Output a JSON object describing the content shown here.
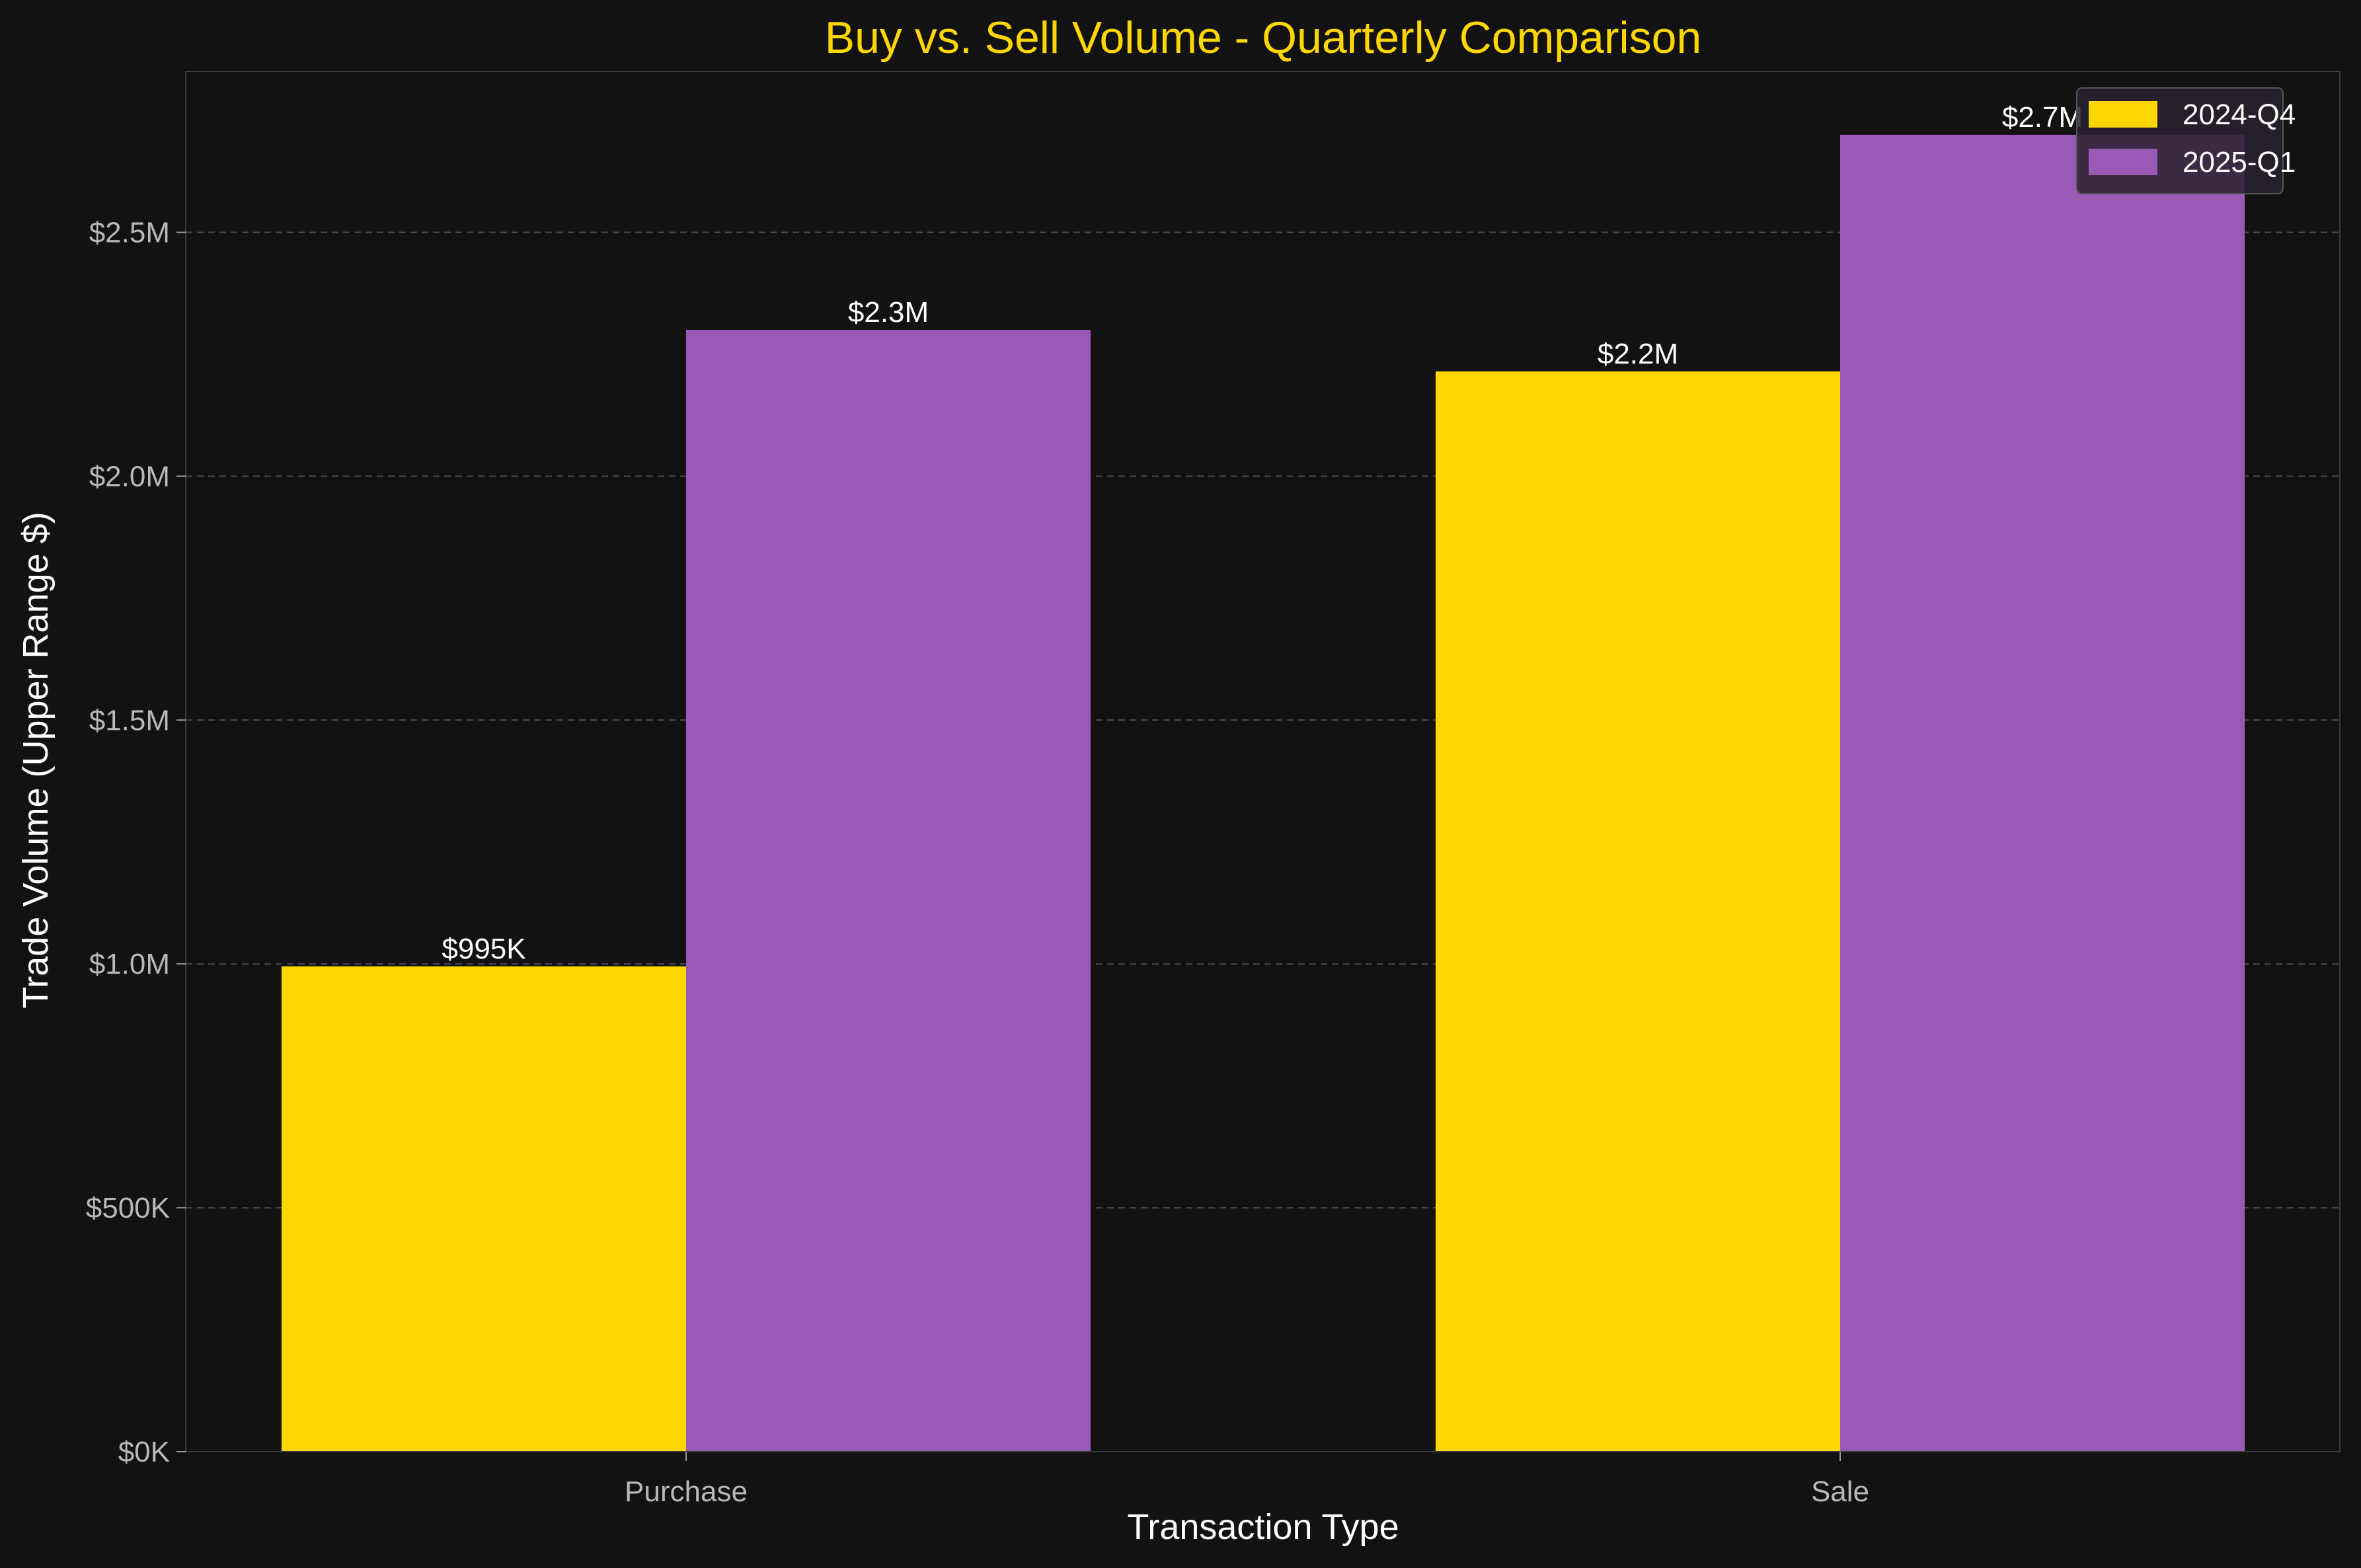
{
  "chart_data": {
    "type": "bar",
    "title": "Buy vs. Sell Volume - Quarterly Comparison",
    "xlabel": "Transaction Type",
    "ylabel": "Trade Volume (Upper Range $)",
    "categories": [
      "Purchase",
      "Sale"
    ],
    "series": [
      {
        "name": "2024-Q4",
        "color": "#FFD700",
        "values": [
          995000,
          2215000
        ],
        "labels": [
          "$995K",
          "$2.2M"
        ]
      },
      {
        "name": "2025-Q1",
        "color": "#9B59B6",
        "values": [
          2300000,
          2700000
        ],
        "labels": [
          "$2.3M",
          "$2.7M"
        ]
      }
    ],
    "ylim": [
      0,
      2830000
    ],
    "yticks": [
      0,
      500000,
      1000000,
      1500000,
      2000000,
      2500000
    ],
    "ytick_labels": [
      "$0K",
      "$500K",
      "$1.0M",
      "$1.5M",
      "$2.0M",
      "$2.5M"
    ],
    "grid": true,
    "legend_position": "top-right",
    "title_color": "#FFD700",
    "background": "#121212"
  }
}
